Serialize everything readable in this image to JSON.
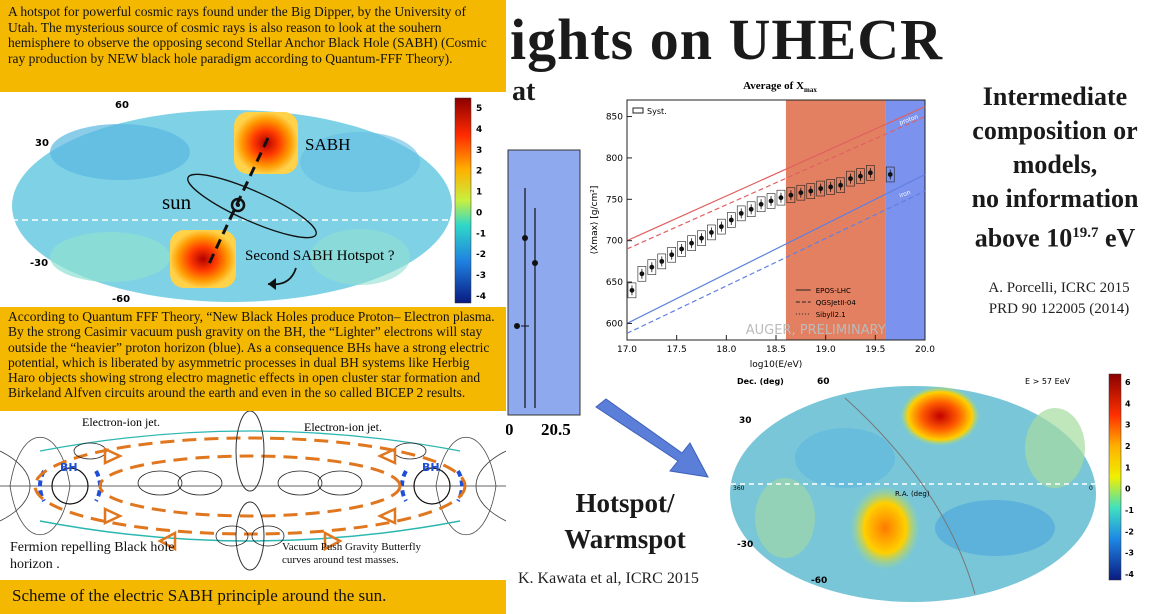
{
  "slide": {
    "title": "ights on UHECR",
    "at_word": "at",
    "intermediate_lines": [
      "Intermediate",
      "composition or",
      "models,",
      "no information",
      "above 10"
    ],
    "intermediate_sup": "19.7",
    "intermediate_unit": " eV",
    "cite_right": [
      "A. Porcelli, ICRC 2015",
      "PRD 90 122005 (2014)"
    ],
    "hotspot_lines": [
      "Hotspot/",
      "Warmspot"
    ],
    "cite_kawata": "K. Kawata et al, ICRC 2015",
    "partial_axis_label": "20.5",
    "partial_axis_zero": "0"
  },
  "overlay": {
    "top_text": "A hotspot for powerful cosmic rays found under the Big Dipper, by the University of Utah. The mysterious source of cosmic rays is also reason to look at the souhern hemisphere to observe the opposing second Stellar Anchor Black Hole (SABH) (Cosmic ray production by NEW black hole paradigm according to Quantum-FFF Theory).",
    "middle_text": "According to  Quantum FFF Theory, “New Black Holes produce Proton– Electron plasma. By the strong Casimir vacuum push gravity on the BH, the “Lighter” electrons will stay outside the “heavier” proton horizon (blue). As a consequence BHs have a strong electric potential, which is liberated by asymmetric processes in dual BH systems like Herbig Haro objects showing strong electro magnetic effects in open cluster star formation and Birkeland Alfven circuits around the earth and even in the so called BICEP 2  results.",
    "bottom_text": "Scheme of the electric SABH principle around the sun."
  },
  "skymap_left": {
    "labels": {
      "sabh": "SABH",
      "sun": "sun",
      "second": "Second SABH Hotspot ?"
    },
    "dec_labels": [
      "60",
      "30",
      "-30",
      "-60"
    ],
    "colorbar_ticks": [
      "5",
      "4",
      "3",
      "2",
      "1",
      "0",
      "-1",
      "-2",
      "-3",
      "-4"
    ]
  },
  "diagram": {
    "labels": {
      "jet_left": "Electron-ion jet.",
      "jet_right": "Electron-ion jet.",
      "bh_left": "BH",
      "bh_right": "BH",
      "fermion": "Fermion repelling Black hole horizon .",
      "vacuum": "Vacuum Push Gravity Butterfly curves around test masses."
    }
  },
  "skymap_right": {
    "header_left": "Dec. (deg)",
    "header_mid": "60",
    "header_right": "E > 57 EeV",
    "dec_labels": [
      "30",
      "-30",
      "-60"
    ],
    "ra_left": "360",
    "ra_right": "0",
    "center_label": "R.A. (deg)",
    "colorbar_ticks": [
      "6",
      "4",
      "3",
      "2",
      "1",
      "0",
      "-1",
      "-2",
      "-3",
      "-4"
    ]
  },
  "chart_data": {
    "type": "scatter",
    "title": "Average of X",
    "title_sub": "max",
    "xlabel": "log10(E/eV)",
    "ylabel": "⟨Xmax⟩ [g/cm²]",
    "xlim": [
      17.0,
      20.0
    ],
    "ylim": [
      580,
      870
    ],
    "x_ticks": [
      17.0,
      17.5,
      18.0,
      18.5,
      19.0,
      19.5,
      20.0
    ],
    "y_ticks": [
      600,
      650,
      700,
      750,
      800,
      850
    ],
    "legend_syst": "Syst.",
    "legend_models": [
      "EPOS-LHC",
      "QGSJetII-04",
      "Sibyll2.1"
    ],
    "watermark": "AUGER, PRELIMINARY",
    "proton_label": "proton",
    "iron_label": "iron",
    "shaded_regions": [
      {
        "from": 18.6,
        "to": 19.6,
        "color": "#d9562e"
      },
      {
        "from": 19.6,
        "to": 20.0,
        "color": "#4f6ee8"
      }
    ],
    "series": [
      {
        "x": [
          17.05,
          17.15,
          17.25,
          17.35,
          17.45,
          17.55,
          17.65,
          17.75,
          17.85,
          17.95,
          18.05,
          18.15,
          18.25,
          18.35,
          18.45,
          18.55,
          18.65,
          18.75,
          18.85,
          18.95,
          19.05,
          19.15,
          19.25,
          19.35,
          19.45,
          19.65
        ],
        "values": [
          640,
          660,
          668,
          675,
          683,
          690,
          697,
          703,
          710,
          717,
          725,
          733,
          738,
          744,
          748,
          752,
          755,
          758,
          760,
          763,
          765,
          767,
          775,
          778,
          782,
          780
        ]
      }
    ]
  }
}
